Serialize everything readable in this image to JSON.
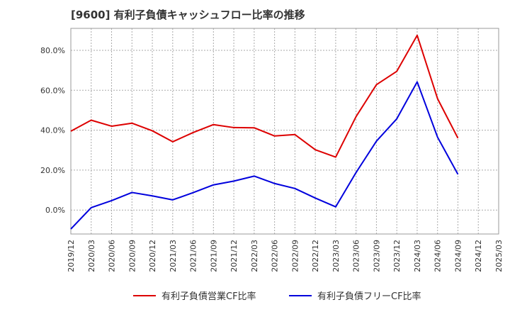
{
  "chart_data": {
    "type": "line",
    "title": "[9600]  有利子負債キャッシュフロー比率の推移",
    "x": [
      "2019/12",
      "2020/03",
      "2020/06",
      "2020/09",
      "2020/12",
      "2021/03",
      "2021/06",
      "2021/09",
      "2021/12",
      "2022/03",
      "2022/06",
      "2022/09",
      "2022/12",
      "2023/03",
      "2023/06",
      "2023/09",
      "2023/12",
      "2024/03",
      "2024/06",
      "2024/09",
      "2024/12",
      "2025/03"
    ],
    "ylim": [
      -12,
      91
    ],
    "yticks": [
      0,
      20,
      40,
      60,
      80
    ],
    "ytick_labels": [
      "0.0%",
      "20.0%",
      "40.0%",
      "60.0%",
      "80.0%"
    ],
    "grid": true,
    "legend_position": "bottom-center",
    "series": [
      {
        "name": "有利子負債営業CF比率",
        "color": "#dd0000",
        "values": [
          39.5,
          45.0,
          42.0,
          43.5,
          39.7,
          34.2,
          38.8,
          42.8,
          41.3,
          41.2,
          37.1,
          37.8,
          30.2,
          26.5,
          46.8,
          62.8,
          69.5,
          87.5,
          55.8,
          36.0,
          null,
          null
        ]
      },
      {
        "name": "有利子負債フリーCF比率",
        "color": "#0000dd",
        "values": [
          -9.5,
          1.2,
          4.7,
          8.8,
          7.1,
          5.1,
          8.7,
          12.6,
          14.5,
          17.0,
          13.3,
          10.8,
          6.0,
          1.6,
          18.8,
          34.5,
          45.7,
          64.2,
          36.5,
          17.9,
          null,
          null
        ]
      }
    ]
  }
}
